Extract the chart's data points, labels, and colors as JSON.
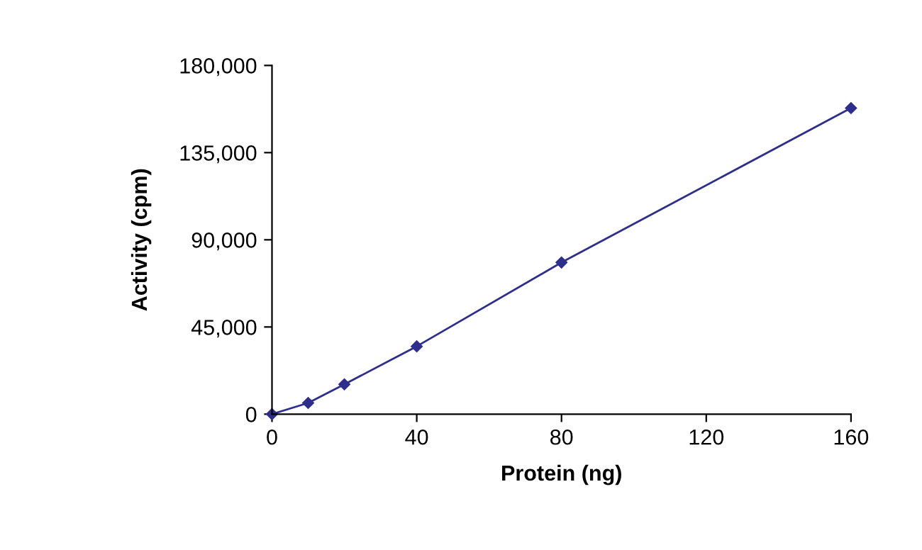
{
  "chart_data": {
    "type": "line",
    "xlabel": "Protein (ng)",
    "ylabel": "Activity (cpm)",
    "x": [
      0,
      10,
      20,
      40,
      80,
      160
    ],
    "series": [
      {
        "color": "#2e2e8c",
        "values": [
          0,
          5800,
          15400,
          35000,
          78300,
          158000
        ]
      }
    ],
    "xlim": [
      0,
      160
    ],
    "xticks": [
      0,
      40,
      80,
      120,
      160
    ],
    "ylim": [
      0,
      180000
    ],
    "yticks": [
      {
        "value": 0,
        "label": "0"
      },
      {
        "value": 45000,
        "label": "45,000"
      },
      {
        "value": 90000,
        "label": "90,000"
      },
      {
        "value": 135000,
        "label": "135,000"
      },
      {
        "value": 180000,
        "label": "180,000"
      }
    ],
    "marker": "diamond",
    "grid": false,
    "legend": false
  }
}
